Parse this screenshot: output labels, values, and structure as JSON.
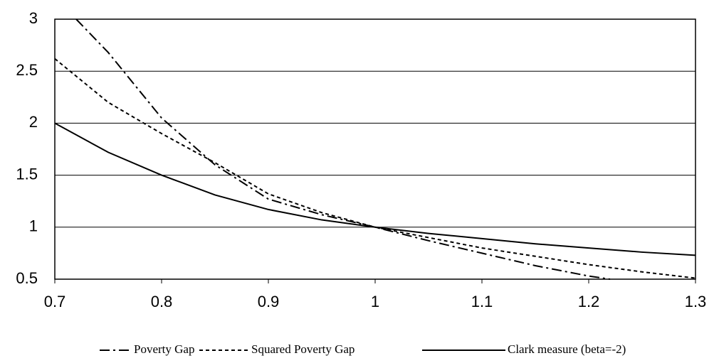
{
  "chart_data": {
    "type": "line",
    "xlim": [
      0.7,
      1.3
    ],
    "xticks": [
      0.7,
      0.8,
      0.9,
      1,
      1.1,
      1.2,
      1.3
    ],
    "ylim": [
      0.5,
      3
    ],
    "yticks": [
      0.5,
      1,
      1.5,
      2,
      2.5,
      3
    ],
    "grid": true,
    "legend": "bottom",
    "series": [
      {
        "name": "Poverty Gap",
        "color": "#000000",
        "dash": "dashdot",
        "x": [
          0.72,
          0.75,
          0.8,
          0.85,
          0.9,
          0.95,
          1,
          1.05,
          1.1,
          1.15,
          1.2,
          1.22
        ],
        "values": [
          3.0,
          2.68,
          2.05,
          1.6,
          1.27,
          1.12,
          1,
          0.87,
          0.75,
          0.63,
          0.53,
          0.5
        ]
      },
      {
        "name": "Squared Poverty Gap",
        "color": "#000000",
        "dash": "dotted",
        "x": [
          0.7,
          0.75,
          0.8,
          0.85,
          0.9,
          0.95,
          1,
          1.05,
          1.1,
          1.15,
          1.2,
          1.25,
          1.3
        ],
        "values": [
          2.62,
          2.2,
          1.9,
          1.62,
          1.32,
          1.14,
          1,
          0.9,
          0.8,
          0.72,
          0.64,
          0.57,
          0.51
        ]
      },
      {
        "name": "Clark measure (beta=-2)",
        "color": "#000000",
        "dash": "solid",
        "x": [
          0.7,
          0.75,
          0.8,
          0.85,
          0.9,
          0.95,
          1,
          1.05,
          1.1,
          1.15,
          1.2,
          1.25,
          1.3
        ],
        "values": [
          2.0,
          1.72,
          1.5,
          1.31,
          1.17,
          1.07,
          1,
          0.94,
          0.89,
          0.84,
          0.8,
          0.76,
          0.73
        ]
      }
    ]
  }
}
